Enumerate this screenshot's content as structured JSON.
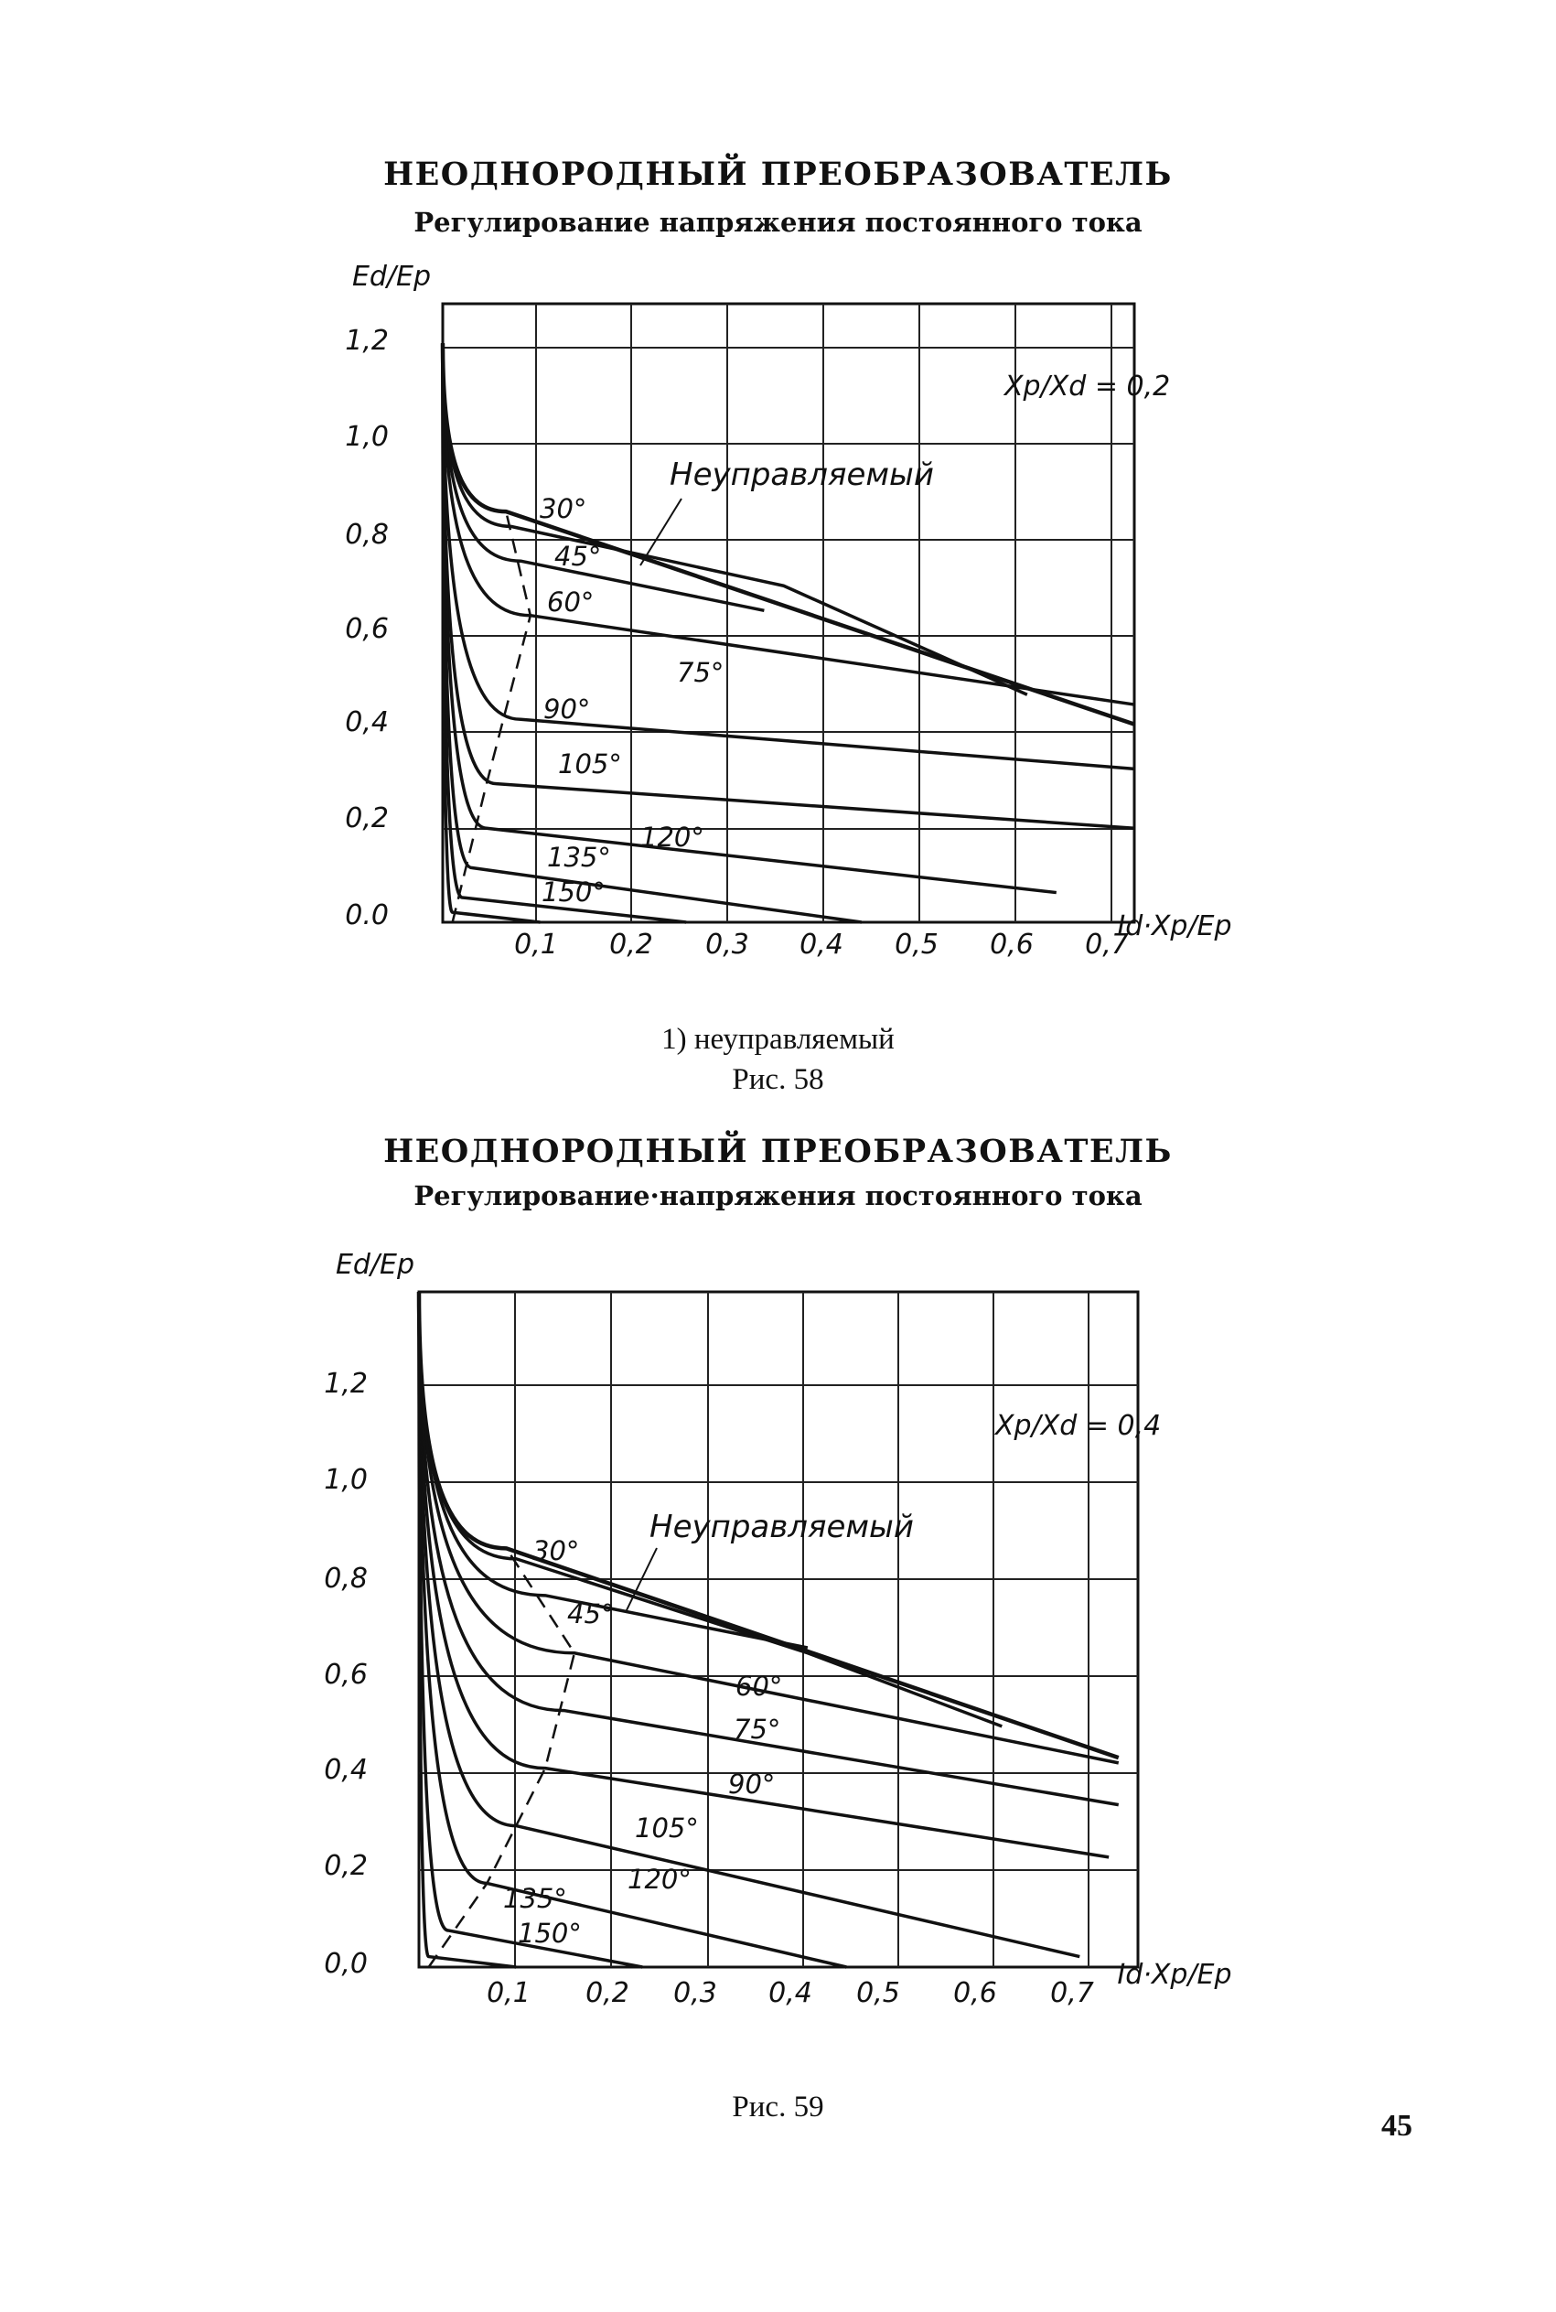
{
  "page_number": "45",
  "fig58": {
    "title": "НЕОДНОРОДНЫЙ ПРЕОБРАЗОВАТЕЛЬ",
    "subtitle": "Регулирование напряжения постоянного тока",
    "caption_sub": "1) неуправляемый",
    "caption": "Рис. 58"
  },
  "fig59": {
    "title": "НЕОДНОРОДНЫЙ ПРЕОБРАЗОВАТЕЛЬ",
    "subtitle": "Регулирование·напряжения постоянного тока",
    "caption": "Рис. 59"
  },
  "chart_data": [
    {
      "type": "line",
      "figure": "Рис. 58",
      "ylabel": "Ed/Ep",
      "xlabel": "Id·Xp/Ep",
      "parameter_label": "Xp/Xd = 0,2",
      "uncontrolled_label": "Неуправляемый",
      "xlim": [
        0,
        0.71
      ],
      "ylim": [
        0,
        1.25
      ],
      "xticks": [
        "0,1",
        "0,2",
        "0,3",
        "0,4",
        "0,5",
        "0,6",
        "0,7"
      ],
      "yticks": [
        "0.0",
        "0,2",
        "0,4",
        "0,6",
        "0,8",
        "1,0",
        "1,2"
      ],
      "grid": true,
      "series": [
        {
          "name": "Неуправляемый",
          "points": [
            [
              0,
              1.17
            ],
            [
              0.065,
              0.83
            ],
            [
              0.71,
              0.4
            ]
          ]
        },
        {
          "name": "30°",
          "points": [
            [
              0,
              1.17
            ],
            [
              0.07,
              0.8
            ],
            [
              0.35,
              0.68
            ],
            [
              0.6,
              0.46
            ]
          ]
        },
        {
          "name": "45°",
          "points": [
            [
              0,
              1.17
            ],
            [
              0.08,
              0.73
            ],
            [
              0.33,
              0.63
            ]
          ]
        },
        {
          "name": "60°",
          "points": [
            [
              0,
              1.17
            ],
            [
              0.09,
              0.62
            ],
            [
              0.71,
              0.44
            ]
          ]
        },
        {
          "name": "75°",
          "points": [
            [
              0,
              1.17
            ],
            [
              0.08,
              0.41
            ],
            [
              0.71,
              0.31
            ]
          ]
        },
        {
          "name": "90°",
          "points": [
            [
              0,
              1.17
            ],
            [
              0.055,
              0.28
            ],
            [
              0.71,
              0.19
            ]
          ]
        },
        {
          "name": "105°",
          "points": [
            [
              0,
              1.17
            ],
            [
              0.045,
              0.19
            ],
            [
              0.63,
              0.06
            ]
          ]
        },
        {
          "name": "120°",
          "points": [
            [
              0,
              1.17
            ],
            [
              0.03,
              0.11
            ],
            [
              0.43,
              0.0
            ]
          ]
        },
        {
          "name": "135°",
          "points": [
            [
              0,
              1.17
            ],
            [
              0.02,
              0.05
            ],
            [
              0.25,
              0.0
            ]
          ]
        },
        {
          "name": "150°",
          "points": [
            [
              0,
              1.17
            ],
            [
              0.01,
              0.02
            ],
            [
              0.1,
              0.0
            ]
          ]
        }
      ],
      "boundary_dashed": [
        [
          0.01,
          0.0
        ],
        [
          0.045,
          0.28
        ],
        [
          0.09,
          0.62
        ],
        [
          0.065,
          0.83
        ]
      ]
    },
    {
      "type": "line",
      "figure": "Рис. 59",
      "ylabel": "Ed/Ep",
      "xlabel": "Id·Xp/Ep",
      "parameter_label": "Xp/Xd = 0,4",
      "uncontrolled_label": "Неуправляемый",
      "xlim": [
        0,
        0.74
      ],
      "ylim": [
        0,
        1.29
      ],
      "xticks": [
        "0,1",
        "0,2",
        "0,3",
        "0,4",
        "0,5",
        "0,6",
        "0,7"
      ],
      "yticks": [
        "0,0",
        "0,2",
        "0,4",
        "0,6",
        "0,8",
        "1,0",
        "1,2"
      ],
      "grid": true,
      "series": [
        {
          "name": "Неуправляемый",
          "points": [
            [
              0,
              1.29
            ],
            [
              0.09,
              0.8
            ],
            [
              0.72,
              0.4
            ]
          ]
        },
        {
          "name": "30°",
          "points": [
            [
              0,
              1.29
            ],
            [
              0.1,
              0.78
            ],
            [
              0.4,
              0.6
            ],
            [
              0.6,
              0.46
            ]
          ]
        },
        {
          "name": "45°",
          "points": [
            [
              0,
              1.29
            ],
            [
              0.13,
              0.71
            ],
            [
              0.4,
              0.61
            ]
          ]
        },
        {
          "name": "60°",
          "points": [
            [
              0,
              1.29
            ],
            [
              0.16,
              0.6
            ],
            [
              0.72,
              0.39
            ]
          ]
        },
        {
          "name": "75°",
          "points": [
            [
              0,
              1.29
            ],
            [
              0.15,
              0.49
            ],
            [
              0.72,
              0.31
            ]
          ]
        },
        {
          "name": "90°",
          "points": [
            [
              0,
              1.29
            ],
            [
              0.13,
              0.38
            ],
            [
              0.71,
              0.21
            ]
          ]
        },
        {
          "name": "105°",
          "points": [
            [
              0,
              1.29
            ],
            [
              0.1,
              0.27
            ],
            [
              0.68,
              0.02
            ]
          ]
        },
        {
          "name": "120°",
          "points": [
            [
              0,
              1.29
            ],
            [
              0.07,
              0.16
            ],
            [
              0.44,
              0.0
            ]
          ]
        },
        {
          "name": "135°",
          "points": [
            [
              0,
              1.29
            ],
            [
              0.03,
              0.07
            ],
            [
              0.23,
              0.0
            ]
          ]
        },
        {
          "name": "150°",
          "points": [
            [
              0,
              1.29
            ],
            [
              0.01,
              0.02
            ],
            [
              0.1,
              0.0
            ]
          ]
        }
      ],
      "boundary_dashed": [
        [
          0.01,
          0.0
        ],
        [
          0.07,
          0.16
        ],
        [
          0.13,
          0.38
        ],
        [
          0.16,
          0.6
        ],
        [
          0.09,
          0.8
        ]
      ]
    }
  ]
}
